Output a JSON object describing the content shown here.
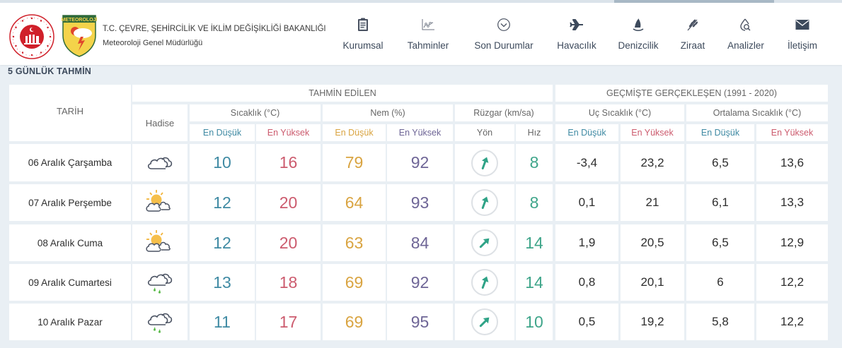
{
  "header": {
    "ministry_title": "T.C. ÇEVRE, ŞEHİRCİLİK VE İKLİM DEĞİŞİKLİĞİ BAKANLIĞI",
    "ministry_subtitle": "Meteoroloji Genel Müdürlüğü",
    "met_logo_text": "METEOROLOJİ"
  },
  "nav": {
    "items": [
      {
        "label": "Kurumsal",
        "icon": "clipboard-icon"
      },
      {
        "label": "Tahminler",
        "icon": "chart-icon"
      },
      {
        "label": "Son Durumlar",
        "icon": "chevron-circle-icon"
      },
      {
        "label": "Havacılık",
        "icon": "airplane-icon"
      },
      {
        "label": "Denizcilik",
        "icon": "sailboat-icon"
      },
      {
        "label": "Ziraat",
        "icon": "wheat-icon"
      },
      {
        "label": "Analizler",
        "icon": "drop-search-icon"
      },
      {
        "label": "İletişim",
        "icon": "envelope-icon"
      }
    ]
  },
  "section": {
    "title": "5 GÜNLÜK TAHMİN"
  },
  "table": {
    "headers": {
      "date": "TARİH",
      "event": "Hadise",
      "forecast_group": "TAHMİN EDİLEN",
      "history_group": "GEÇMİŞTE GERÇEKLEŞEN (1991 - 2020)",
      "temperature": "Sıcaklık (°C)",
      "humidity": "Nem (%)",
      "wind": "Rüzgar (km/sa)",
      "extreme_temp": "Uç Sıcaklık (°C)",
      "avg_temp": "Ortalama Sıcaklık (°C)",
      "low": "En Düşük",
      "high": "En Yüksek",
      "direction": "Yön",
      "speed": "Hız"
    },
    "rows": [
      {
        "date": "06 Aralık Çarşamba",
        "event": "cloudy",
        "temp_low": "10",
        "temp_high": "16",
        "hum_low": "79",
        "hum_high": "92",
        "wind_dir_deg": 20,
        "wind_speed": "8",
        "ext_low": "-3,4",
        "ext_high": "23,2",
        "avg_low": "6,5",
        "avg_high": "13,6"
      },
      {
        "date": "07 Aralık Perşembe",
        "event": "partly-cloudy",
        "temp_low": "12",
        "temp_high": "20",
        "hum_low": "64",
        "hum_high": "93",
        "wind_dir_deg": 20,
        "wind_speed": "8",
        "ext_low": "0,1",
        "ext_high": "21",
        "avg_low": "6,1",
        "avg_high": "13,3"
      },
      {
        "date": "08 Aralık Cuma",
        "event": "partly-cloudy",
        "temp_low": "12",
        "temp_high": "20",
        "hum_low": "63",
        "hum_high": "84",
        "wind_dir_deg": 45,
        "wind_speed": "14",
        "ext_low": "1,9",
        "ext_high": "20,5",
        "avg_low": "6,5",
        "avg_high": "12,9"
      },
      {
        "date": "09 Aralık Cumartesi",
        "event": "rain",
        "temp_low": "13",
        "temp_high": "18",
        "hum_low": "69",
        "hum_high": "92",
        "wind_dir_deg": 20,
        "wind_speed": "14",
        "ext_low": "0,8",
        "ext_high": "20,1",
        "avg_low": "6",
        "avg_high": "12,2"
      },
      {
        "date": "10 Aralık Pazar",
        "event": "rain",
        "temp_low": "11",
        "temp_high": "17",
        "hum_low": "69",
        "hum_high": "95",
        "wind_dir_deg": 45,
        "wind_speed": "10",
        "ext_low": "0,5",
        "ext_high": "19,2",
        "avg_low": "5,8",
        "avg_high": "12,2"
      }
    ]
  },
  "colors": {
    "temp_low": "#3f8aa3",
    "temp_high": "#cc5b6e",
    "hum_low": "#d9a441",
    "hum_high": "#6e6596",
    "wind": "#3fa58a",
    "page_bg": "#e9eff4"
  }
}
